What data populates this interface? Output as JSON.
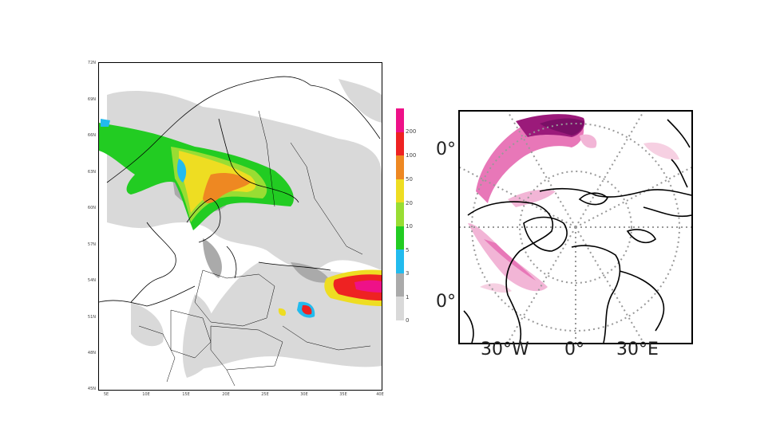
{
  "left_map": {
    "y_ticks": [
      "72N",
      "69N",
      "66N",
      "63N",
      "60N",
      "57N",
      "54N",
      "51N",
      "48N",
      "45N"
    ],
    "x_ticks": [
      "5E",
      "10E",
      "15E",
      "20E",
      "25E",
      "30E",
      "35E",
      "40E"
    ]
  },
  "colorbar": {
    "levels": [
      "0",
      "1",
      "3",
      "5",
      "10",
      "20",
      "50",
      "100",
      "200"
    ],
    "colors": [
      "#d9d9d9",
      "#aaaaaa",
      "#22bbee",
      "#22cc22",
      "#99dd33",
      "#eedd22",
      "#ee8822",
      "#ee2222",
      "#ee1188"
    ]
  },
  "right_map": {
    "lat_labels": [
      "0°",
      "0°"
    ],
    "lon_labels": [
      "30°W",
      "0°",
      "30°E"
    ],
    "plume_color": "#cc3399"
  }
}
